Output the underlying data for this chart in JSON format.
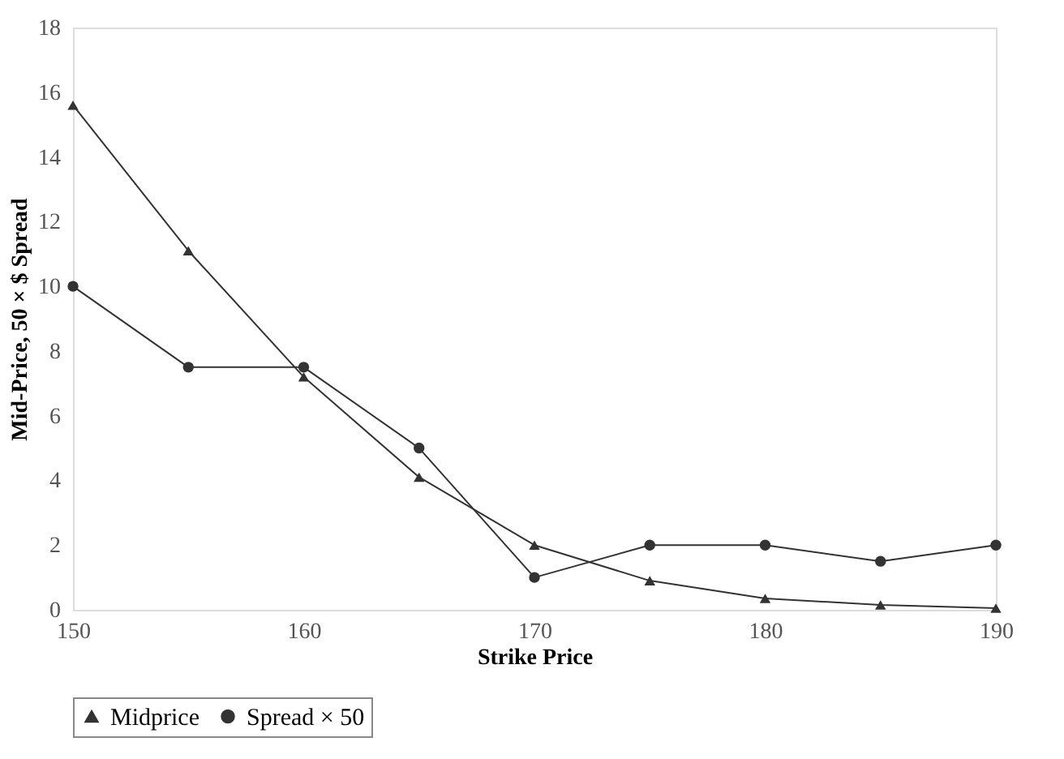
{
  "chart_data": {
    "type": "line",
    "xlabel": "Strike Price",
    "ylabel": "Mid-Price, 50 × $ Spread",
    "x": [
      150,
      155,
      160,
      165,
      170,
      175,
      180,
      185,
      190
    ],
    "series": [
      {
        "name": "Midprice",
        "color": "#333333",
        "marker": "triangle",
        "values": [
          15.6,
          11.1,
          7.2,
          4.1,
          2.0,
          0.9,
          0.35,
          0.15,
          0.05
        ]
      },
      {
        "name": "Spread × 50",
        "color": "#333333",
        "marker": "circle",
        "values": [
          10,
          7.5,
          7.5,
          5,
          1,
          2,
          2,
          1.5,
          2
        ]
      }
    ],
    "xlim": [
      150,
      190
    ],
    "xticks": [
      150,
      160,
      170,
      180,
      190
    ],
    "ylim": [
      0,
      18
    ],
    "yticks": [
      0,
      2,
      4,
      6,
      8,
      10,
      12,
      14,
      16,
      18
    ],
    "grid": false,
    "legend": "bottom",
    "line_style": "solid"
  }
}
